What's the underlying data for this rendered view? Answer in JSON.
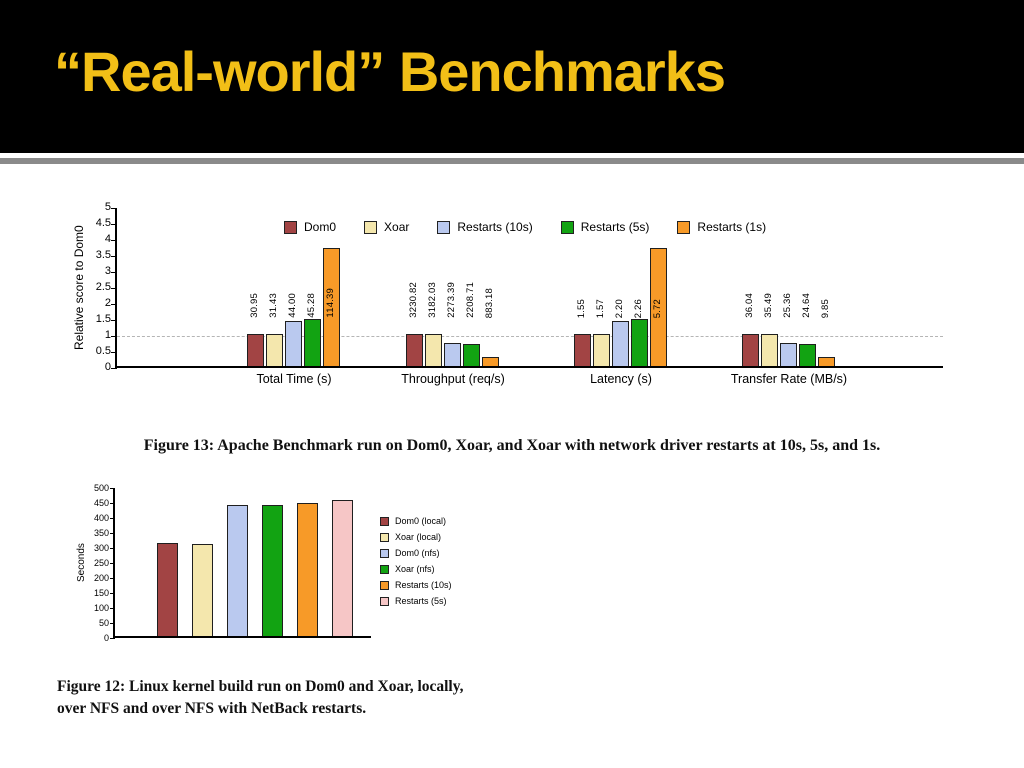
{
  "slide": {
    "title": "“Real-world” Benchmarks",
    "title_color": "#f2bf17"
  },
  "captions": {
    "figure13": "Figure 13: Apache Benchmark run on Dom0, Xoar, and Xoar with network driver restarts at 10s, 5s, and 1s.",
    "figure12_line1": "Figure 12: Linux kernel build run on Dom0 and Xoar, locally,",
    "figure12_line2": "over NFS and over NFS with NetBack restarts."
  },
  "chart_data": [
    {
      "type": "bar",
      "title": "Apache Benchmark relative scores",
      "ylabel": "Relative score to Dom0",
      "ylim": [
        0,
        5
      ],
      "yticks": [
        0,
        0.5,
        1,
        1.5,
        2,
        2.5,
        3,
        3.5,
        4,
        4.5,
        5
      ],
      "gridline_y": 1,
      "grid": "dashed line at y=1",
      "legend_position": "top",
      "categories": [
        "Total Time (s)",
        "Throughput (req/s)",
        "Latency (s)",
        "Transfer Rate (MB/s)"
      ],
      "series": [
        {
          "name": "Dom0",
          "color": "#a24444",
          "raw_values": [
            30.95,
            3230.82,
            1.55,
            36.04
          ],
          "value_labels": [
            "30.95",
            "3230.82",
            "1.55",
            "36.04"
          ],
          "relative_values": [
            1.0,
            1.0,
            1.0,
            1.0
          ]
        },
        {
          "name": "Xoar",
          "color": "#f4e7ad",
          "raw_values": [
            31.43,
            3182.03,
            1.57,
            35.49
          ],
          "value_labels": [
            "31.43",
            "3182.03",
            "1.57",
            "35.49"
          ],
          "relative_values": [
            1.016,
            0.985,
            1.013,
            0.985
          ]
        },
        {
          "name": "Restarts (10s)",
          "color": "#bac9ef",
          "raw_values": [
            44.0,
            2273.39,
            2.2,
            25.36
          ],
          "value_labels": [
            "44.00",
            "2273.39",
            "2.20",
            "25.36"
          ],
          "relative_values": [
            1.422,
            0.704,
            1.419,
            0.704
          ]
        },
        {
          "name": "Restarts (5s)",
          "color": "#12a312",
          "raw_values": [
            45.28,
            2208.71,
            2.26,
            24.64
          ],
          "value_labels": [
            "45.28",
            "2208.71",
            "2.26",
            "24.64"
          ],
          "relative_values": [
            1.463,
            0.684,
            1.458,
            0.684
          ]
        },
        {
          "name": "Restarts (1s)",
          "color": "#f79a28",
          "raw_values": [
            114.39,
            883.18,
            5.72,
            9.85
          ],
          "value_labels": [
            "114.39",
            "883.18",
            "5.72",
            "9.85"
          ],
          "relative_values": [
            3.696,
            0.273,
            3.69,
            0.273
          ]
        }
      ]
    },
    {
      "type": "bar",
      "title": "Linux kernel build time",
      "ylabel": "Seconds",
      "ylim": [
        0,
        500
      ],
      "yticks": [
        0,
        50,
        100,
        150,
        200,
        250,
        300,
        350,
        400,
        450,
        500
      ],
      "legend_position": "right",
      "series": [
        {
          "name": "Dom0 (local)",
          "color": "#a24444",
          "value": 310
        },
        {
          "name": "Xoar (local)",
          "color": "#f4e7ad",
          "value": 308
        },
        {
          "name": "Dom0 (nfs)",
          "color": "#bac9ef",
          "value": 437
        },
        {
          "name": "Xoar (nfs)",
          "color": "#12a312",
          "value": 436
        },
        {
          "name": "Restarts (10s)",
          "color": "#f79a28",
          "value": 444
        },
        {
          "name": "Restarts (5s)",
          "color": "#f6c6c6",
          "value": 452
        }
      ]
    }
  ]
}
